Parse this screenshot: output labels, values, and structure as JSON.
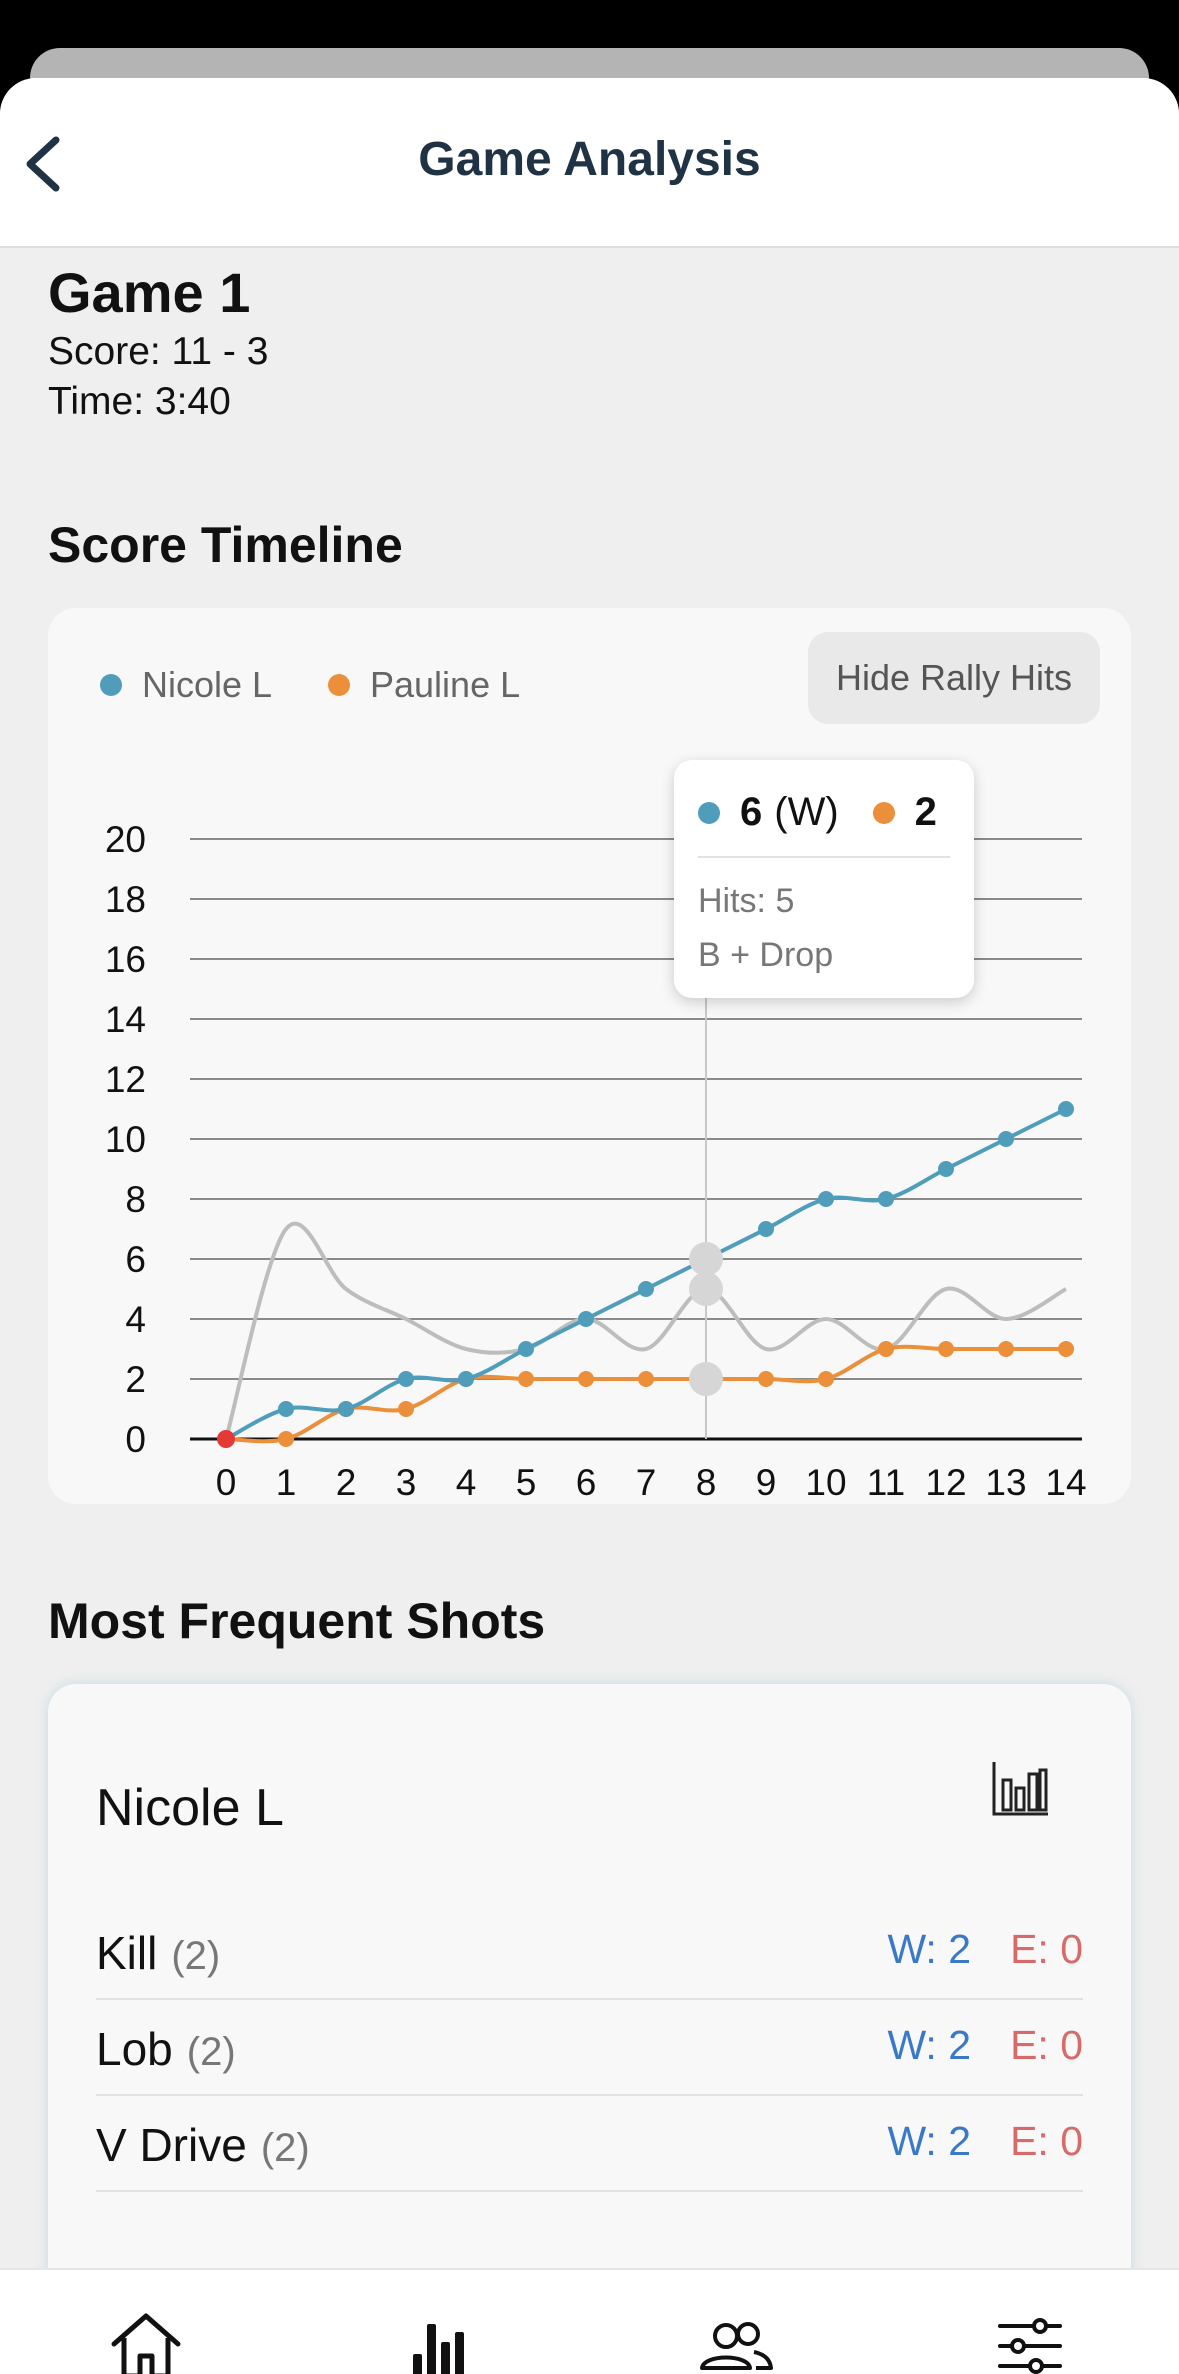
{
  "header": {
    "title": "Game Analysis",
    "back_icon": "chevron-left-icon"
  },
  "game": {
    "title": "Game 1",
    "score": "Score: 11 - 3",
    "time": "Time: 3:40"
  },
  "timeline": {
    "section_title": "Score Timeline",
    "hide_rally_label": "Hide Rally Hits",
    "tooltip": {
      "score_a": "6",
      "score_a_suffix": "(W)",
      "score_b": "2",
      "hits": "Hits: 5",
      "shot": "B + Drop"
    }
  },
  "colors": {
    "nicole": "#4f9dba",
    "pauline": "#ec8f3a",
    "rally": "#bdbdbd",
    "start": "#e53935"
  },
  "chart_data": {
    "type": "line",
    "x": [
      0,
      1,
      2,
      3,
      4,
      5,
      6,
      7,
      8,
      9,
      10,
      11,
      12,
      13,
      14
    ],
    "xticks": [
      "0",
      "1",
      "2",
      "3",
      "4",
      "5",
      "6",
      "7",
      "8",
      "9",
      "10",
      "11",
      "12",
      "13",
      "14"
    ],
    "yticks": [
      "0",
      "2",
      "4",
      "6",
      "8",
      "10",
      "12",
      "14",
      "16",
      "18",
      "20"
    ],
    "ylim": [
      0,
      20
    ],
    "xlim": [
      0,
      14
    ],
    "grid": true,
    "legend_position": "top-left",
    "series": [
      {
        "name": "Nicole L",
        "values": [
          0,
          1,
          1,
          2,
          2,
          3,
          4,
          5,
          6,
          7,
          8,
          8,
          9,
          10,
          11
        ]
      },
      {
        "name": "Pauline L",
        "values": [
          0,
          0,
          1,
          1,
          2,
          2,
          2,
          2,
          2,
          2,
          2,
          3,
          3,
          3,
          3
        ]
      },
      {
        "name": "",
        "values": [
          0,
          7,
          5,
          4,
          3,
          3,
          4,
          3,
          5,
          3,
          4,
          3,
          5,
          4,
          5
        ]
      }
    ],
    "highlight_x": 8
  },
  "shots": {
    "section_title": "Most Frequent Shots",
    "player": "Nicole L",
    "stats_icon": "bar-chart-icon",
    "rows": [
      {
        "name": "Kill",
        "count": "(2)",
        "w": "W: 2",
        "e": "E: 0"
      },
      {
        "name": "Lob",
        "count": "(2)",
        "w": "W: 2",
        "e": "E: 0"
      },
      {
        "name": "V Drive",
        "count": "(2)",
        "w": "W: 2",
        "e": "E: 0"
      }
    ]
  },
  "tabbar": {
    "icons": [
      "home-icon",
      "stats-icon",
      "people-icon",
      "settings-sliders-icon"
    ]
  }
}
